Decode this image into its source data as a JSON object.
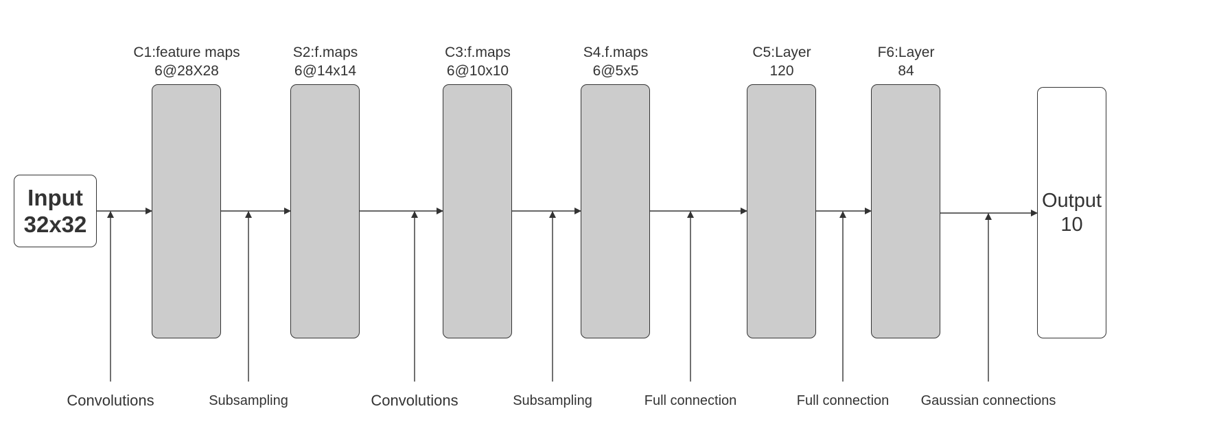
{
  "colors": {
    "layer_fill": "#cccccc",
    "stroke": "#333333",
    "background": "#ffffff"
  },
  "input": {
    "line1": "Input",
    "line2": "32x32"
  },
  "output": {
    "line1": "Output",
    "line2": "10"
  },
  "layers": [
    {
      "name": "C1:feature maps",
      "size": "6@28X28"
    },
    {
      "name": "S2:f.maps",
      "size": "6@14x14"
    },
    {
      "name": "C3:f.maps",
      "size": "6@10x10"
    },
    {
      "name": "S4.f.maps",
      "size": "6@5x5"
    },
    {
      "name": "C5:Layer",
      "size": "120"
    },
    {
      "name": "F6:Layer",
      "size": "84"
    }
  ],
  "operations": [
    "Convolutions",
    "Subsampling",
    "Convolutions",
    "Subsampling",
    "Full connection",
    "Full connection",
    "Gaussian connections"
  ]
}
